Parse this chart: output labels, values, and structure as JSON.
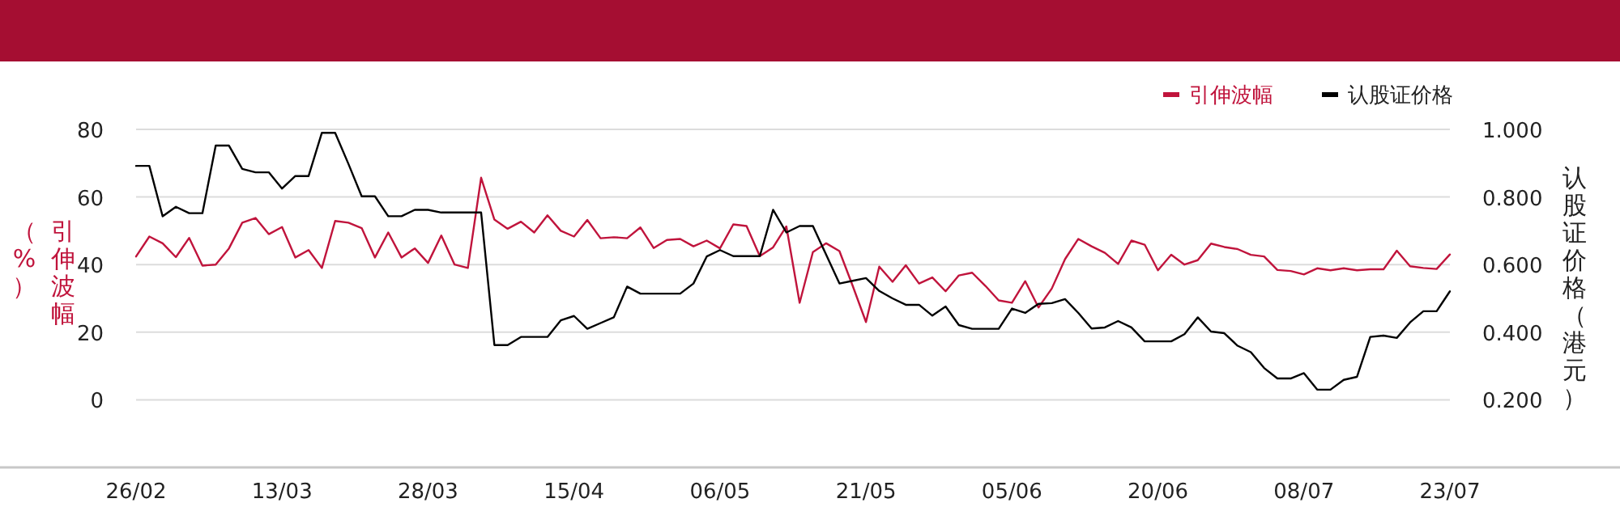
{
  "chart_data": {
    "type": "line",
    "categories": [
      "26/02",
      null,
      null,
      null,
      null,
      null,
      null,
      null,
      null,
      null,
      null,
      "13/03",
      null,
      null,
      null,
      null,
      null,
      null,
      null,
      null,
      null,
      null,
      "28/03",
      null,
      null,
      null,
      null,
      null,
      null,
      null,
      null,
      null,
      null,
      "15/04",
      null,
      null,
      null,
      null,
      null,
      null,
      null,
      null,
      null,
      null,
      "06/05",
      null,
      null,
      null,
      null,
      null,
      null,
      null,
      null,
      null,
      null,
      "21/05",
      null,
      null,
      null,
      null,
      null,
      null,
      null,
      null,
      null,
      null,
      "05/06",
      null,
      null,
      null,
      null,
      null,
      null,
      null,
      null,
      null,
      null,
      "20/06",
      null,
      null,
      null,
      null,
      null,
      null,
      null,
      null,
      null,
      null,
      "08/07",
      null,
      null,
      null,
      null,
      null,
      null,
      null,
      null,
      null,
      null,
      "23/07"
    ],
    "series": [
      {
        "name": "引伸波幅",
        "color": "#c0143c",
        "values": [
          42.4,
          48.3,
          46.3,
          42.2,
          47.9,
          39.7,
          40.0,
          44.8,
          52.4,
          53.8,
          49.0,
          51.1,
          42.1,
          44.3,
          39.0,
          52.9,
          52.4,
          50.8,
          42.1,
          49.5,
          42.1,
          44.8,
          40.5,
          48.6,
          40.0,
          39.0,
          65.7,
          53.3,
          50.6,
          52.7,
          49.5,
          54.6,
          50.0,
          48.3,
          53.2,
          47.8,
          48.1,
          47.8,
          51.0,
          44.9,
          47.3,
          47.6,
          45.4,
          47.1,
          44.8,
          51.9,
          51.4,
          42.5,
          45.1,
          51.3,
          28.7,
          43.7,
          46.3,
          44.0,
          33.7,
          23.0,
          39.4,
          34.9,
          39.8,
          34.4,
          36.2,
          32.1,
          36.8,
          37.6,
          33.7,
          29.4,
          28.7,
          35.1,
          27.3,
          32.9,
          41.6,
          47.6,
          45.4,
          43.5,
          40.2,
          47.1,
          45.9,
          38.3,
          42.9,
          40.0,
          41.3,
          46.2,
          45.2,
          44.6,
          42.9,
          42.4,
          38.4,
          38.1,
          37.1,
          38.9,
          38.3,
          38.9,
          38.3,
          38.6,
          38.6,
          44.1,
          39.5,
          39.0,
          38.7,
          43.0
        ]
      },
      {
        "name": "认股证价格",
        "color": "#000000",
        "axis": "y2",
        "values": [
          0.892,
          0.892,
          0.743,
          0.771,
          0.752,
          0.752,
          0.952,
          0.952,
          0.883,
          0.873,
          0.873,
          0.825,
          0.862,
          0.862,
          0.99,
          0.99,
          0.898,
          0.802,
          0.802,
          0.743,
          0.743,
          0.762,
          0.762,
          0.754,
          0.754,
          0.754,
          0.754,
          0.362,
          0.362,
          0.386,
          0.386,
          0.386,
          0.435,
          0.448,
          0.41,
          0.427,
          0.444,
          0.535,
          0.514,
          0.514,
          0.514,
          0.514,
          0.544,
          0.624,
          0.643,
          0.625,
          0.625,
          0.625,
          0.762,
          0.695,
          0.714,
          0.714,
          0.629,
          0.544,
          0.552,
          0.56,
          0.522,
          0.5,
          0.481,
          0.481,
          0.449,
          0.476,
          0.421,
          0.41,
          0.41,
          0.41,
          0.47,
          0.457,
          0.484,
          0.486,
          0.498,
          0.457,
          0.411,
          0.414,
          0.433,
          0.414,
          0.373,
          0.373,
          0.373,
          0.394,
          0.444,
          0.402,
          0.397,
          0.36,
          0.341,
          0.294,
          0.263,
          0.263,
          0.279,
          0.23,
          0.23,
          0.259,
          0.268,
          0.386,
          0.39,
          0.383,
          0.429,
          0.462,
          0.462,
          0.521
        ]
      }
    ],
    "ylabel": "引伸波幅（%）",
    "y2label": "认股证价格（港元）",
    "ylim": [
      -20,
      80
    ],
    "yticks": [
      0,
      20,
      40,
      60,
      80
    ],
    "y2lim": [
      0,
      1
    ],
    "y2ticks": [
      {
        "value": 0.2,
        "label": "0.200"
      },
      {
        "value": 0.4,
        "label": "0.400"
      },
      {
        "value": 0.6,
        "label": "0.600"
      },
      {
        "value": 0.8,
        "label": "0.800"
      },
      {
        "value": 1.0,
        "label": "1.000"
      }
    ],
    "grid": "y",
    "legend": "top right"
  }
}
